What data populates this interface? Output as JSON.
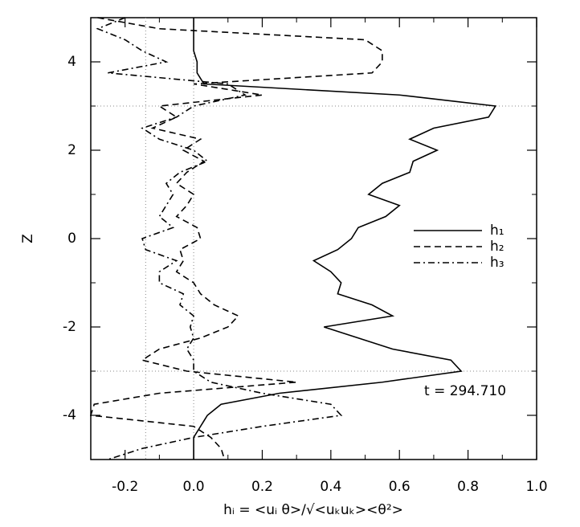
{
  "chart_data": {
    "type": "line",
    "x_label": "hᵢ = <uᵢ θ>/√<uₖuₖ><θ²>",
    "y_label": "Z",
    "annotation": "t = 294.710",
    "z": [
      5,
      4.75,
      4.5,
      4.25,
      4,
      3.75,
      3.5,
      3.25,
      3,
      2.75,
      2.5,
      2.25,
      2,
      1.75,
      1.5,
      1.25,
      1,
      0.75,
      0.5,
      0.25,
      0,
      -0.25,
      -0.5,
      -0.75,
      -1,
      -1.25,
      -1.5,
      -1.75,
      -2,
      -2.25,
      -2.5,
      -2.75,
      -3,
      -3.25,
      -3.5,
      -3.75,
      -4,
      -4.25,
      -4.5,
      -4.75,
      -5
    ],
    "series": [
      {
        "name": "h₁",
        "color": "#000000",
        "dash": "solid",
        "values": [
          0,
          0,
          0,
          0,
          0.01,
          0.01,
          0.03,
          0.6,
          0.88,
          0.86,
          0.7,
          0.63,
          0.71,
          0.64,
          0.63,
          0.55,
          0.51,
          0.6,
          0.56,
          0.48,
          0.46,
          0.42,
          0.35,
          0.4,
          0.43,
          0.42,
          0.52,
          0.58,
          0.38,
          0.48,
          0.58,
          0.75,
          0.78,
          0.55,
          0.25,
          0.08,
          0.04,
          0.02,
          0,
          0,
          0
        ]
      },
      {
        "name": "h₂",
        "color": "#000000",
        "dash": "dashed",
        "values": [
          -0.28,
          -0.1,
          0.5,
          0.55,
          0.55,
          0.52,
          0,
          0.2,
          -0.1,
          -0.05,
          -0.12,
          0.02,
          -0.03,
          0.03,
          -0.02,
          -0.05,
          0,
          -0.02,
          -0.05,
          0.01,
          0.02,
          -0.04,
          -0.03,
          -0.05,
          0,
          0.02,
          0.06,
          0.13,
          0.1,
          0.02,
          -0.1,
          -0.15,
          -0.02,
          0.3,
          -0.1,
          -0.29,
          -0.3,
          0,
          0.05,
          0.08,
          0.09
        ]
      },
      {
        "name": "h₃",
        "color": "#000000",
        "dash": "dashdot",
        "values": [
          -0.2,
          -0.28,
          -0.2,
          -0.15,
          -0.08,
          -0.25,
          0.1,
          0.15,
          0,
          -0.05,
          -0.15,
          -0.1,
          0,
          0.04,
          -0.04,
          -0.08,
          -0.06,
          -0.08,
          -0.1,
          -0.06,
          -0.15,
          -0.14,
          -0.05,
          -0.1,
          -0.1,
          -0.03,
          -0.04,
          0,
          -0.01,
          0,
          -0.02,
          0,
          0,
          0.05,
          0.2,
          0.4,
          0.43,
          0.2,
          0,
          -0.15,
          -0.25
        ]
      }
    ],
    "xlim": [
      -0.3,
      1.0
    ],
    "ylim": [
      -5,
      5
    ],
    "xticks": [
      -0.2,
      {
        "value": 0,
        "label": "0.0"
      },
      0.2,
      0.4,
      0.6,
      0.8,
      {
        "value": 1,
        "label": "1.0"
      }
    ],
    "xticks_minor": [
      -0.3,
      -0.1,
      0.1,
      0.3,
      0.5,
      0.7,
      0.9
    ],
    "yticks": [
      -4,
      -2,
      0,
      2,
      4
    ],
    "yticks_minor": [
      -5,
      -3,
      -1,
      1,
      3,
      5
    ],
    "vlines": [
      -0.14,
      0
    ],
    "hlines": [
      3,
      -3
    ]
  }
}
